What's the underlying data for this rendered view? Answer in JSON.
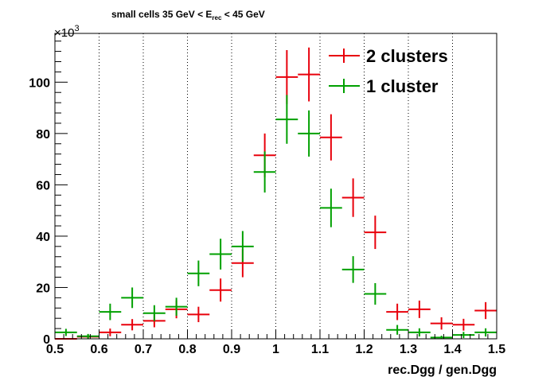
{
  "chart_data": {
    "type": "scatter",
    "title": "small cells 35 GeV < E",
    "title_sub": "rec",
    "title_tail": " < 45 GeV",
    "xlabel": "rec.Dgg / gen.Dgg",
    "ylabel": "",
    "y_multiplier_base": "×10",
    "y_multiplier_exp": "3",
    "xlim": [
      0.5,
      1.5
    ],
    "ylim": [
      0,
      119
    ],
    "x_ticks": [
      0.5,
      0.6,
      0.7,
      0.8,
      0.9,
      1.0,
      1.1,
      1.2,
      1.3,
      1.4,
      1.5
    ],
    "x_tick_labels": [
      "0.5",
      "0.6",
      "0.7",
      "0.8",
      "0.9",
      "1",
      "1.1",
      "1.2",
      "1.3",
      "1.4",
      "1.5"
    ],
    "y_ticks": [
      0,
      20,
      40,
      60,
      80,
      100
    ],
    "y_tick_labels": [
      "0",
      "20",
      "40",
      "60",
      "80",
      "100"
    ],
    "bin_width": 0.05,
    "vertical_dotted_lines": [
      0.6,
      0.7,
      0.8,
      0.9,
      1.0,
      1.1,
      1.2,
      1.3,
      1.4
    ],
    "legend_position": "top-right",
    "series": [
      {
        "name": "2 clusters",
        "color": "#e8000b",
        "x": [
          0.525,
          0.575,
          0.625,
          0.675,
          0.725,
          0.775,
          0.825,
          0.875,
          0.925,
          0.975,
          1.025,
          1.075,
          1.125,
          1.175,
          1.225,
          1.275,
          1.325,
          1.375,
          1.425,
          1.475
        ],
        "y": [
          0,
          0.8,
          2.5,
          5.5,
          7,
          11.5,
          9.5,
          19,
          29.5,
          71.5,
          102,
          103,
          78.5,
          55,
          41.5,
          10.5,
          11.5,
          6,
          5.5,
          11
        ],
        "err": [
          0,
          0.7,
          1.5,
          2.2,
          2.5,
          3.5,
          3,
          4.5,
          5.5,
          8.5,
          10.5,
          10.5,
          9,
          7.5,
          6.5,
          3.2,
          3.4,
          2.4,
          2.3,
          3.3
        ]
      },
      {
        "name": "1 cluster",
        "color": "#00a000",
        "x": [
          0.525,
          0.575,
          0.625,
          0.675,
          0.725,
          0.775,
          0.825,
          0.875,
          0.925,
          0.975,
          1.025,
          1.075,
          1.125,
          1.175,
          1.225,
          1.275,
          1.325,
          1.375,
          1.425,
          1.475
        ],
        "y": [
          2.5,
          1,
          10.5,
          16,
          10,
          12.5,
          25.5,
          33,
          36,
          65,
          85.5,
          80,
          51,
          27,
          17.5,
          3.5,
          2.5,
          0.5,
          1.5,
          2.5
        ],
        "err": [
          1.4,
          0.9,
          3.2,
          4,
          3.1,
          3.5,
          5,
          6,
          6,
          8,
          9.5,
          9,
          7.5,
          5.2,
          4.2,
          1.9,
          1.6,
          0.7,
          1.2,
          1.6
        ]
      }
    ]
  }
}
